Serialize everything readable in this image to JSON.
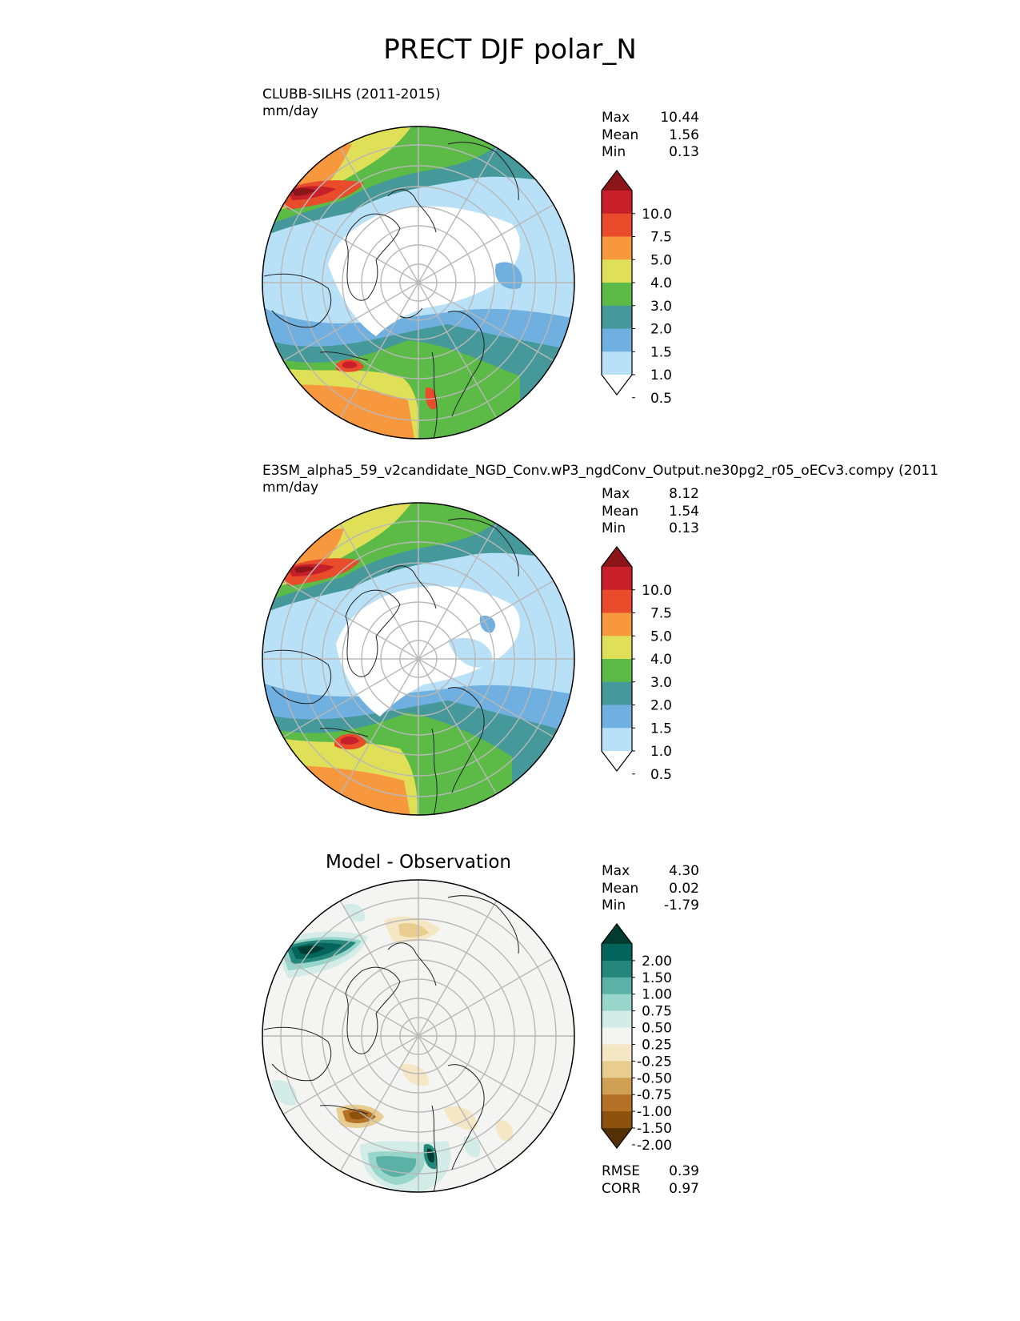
{
  "figure": {
    "title": "PRECT DJF polar_N"
  },
  "panels": [
    {
      "title_line1": "CLUBB-SILHS (2011-2015)",
      "title_line2": "mm/day",
      "stats": {
        "Max": "10.44",
        "Mean": "1.56",
        "Min": "0.13"
      },
      "stat_labels": {
        "max": "Max",
        "mean": "Mean",
        "min": "Min"
      }
    },
    {
      "title_line1": "E3SM_alpha5_59_v2candidate_NGD_Conv.wP3_ngdConv_Output.ne30pg2_r05_oECv3.compy (2011",
      "title_line2": "mm/day",
      "stats": {
        "Max": "8.12",
        "Mean": "1.54",
        "Min": "0.13"
      },
      "stat_labels": {
        "max": "Max",
        "mean": "Mean",
        "min": "Min"
      }
    },
    {
      "title": "Model - Observation",
      "stats": {
        "Max": "4.30",
        "Mean": "0.02",
        "Min": "-1.79"
      },
      "stat_labels": {
        "max": "Max",
        "mean": "Mean",
        "min": "Min"
      },
      "metrics": {
        "RMSE": "0.39",
        "CORR": "0.97"
      },
      "metric_labels": {
        "rmse": "RMSE",
        "corr": "CORR"
      }
    }
  ],
  "colorbars": {
    "precip": {
      "ticks": [
        "10.0",
        "7.5",
        "5.0",
        "4.0",
        "3.0",
        "2.0",
        "1.5",
        "1.0",
        "0.5"
      ],
      "colors": [
        "#ffffff",
        "#b8e0f7",
        "#6fb0e0",
        "#45999a",
        "#5cba47",
        "#dfe057",
        "#f7973e",
        "#e84c2a",
        "#c8202a",
        "#8c1519"
      ]
    },
    "diff": {
      "ticks": [
        "2.00",
        "1.50",
        "1.00",
        "0.75",
        "0.50",
        "0.25",
        "-0.25",
        "-0.50",
        "-0.75",
        "-1.00",
        "-1.50",
        "-2.00"
      ],
      "colors": [
        "#543005",
        "#8c510a",
        "#b57125",
        "#cfa054",
        "#e8cd8f",
        "#f5e6c4",
        "#f4f4f2",
        "#d3ece8",
        "#98d5cb",
        "#5bb1a5",
        "#23877c",
        "#02645a",
        "#003c30"
      ]
    }
  },
  "chart_data": [
    {
      "type": "heatmap",
      "projection": "north polar stereographic",
      "title": "CLUBB-SILHS (2011-2015)",
      "units": "mm/day",
      "levels": [
        0.5,
        1.0,
        1.5,
        2.0,
        3.0,
        4.0,
        5.0,
        7.5,
        10.0
      ],
      "stats": {
        "max": 10.44,
        "mean": 1.56,
        "min": 0.13
      }
    },
    {
      "type": "heatmap",
      "projection": "north polar stereographic",
      "title": "E3SM_alpha5_59_v2candidate_NGD_Conv.wP3_ngdConv_Output.ne30pg2_r05_oECv3.compy (2011",
      "units": "mm/day",
      "levels": [
        0.5,
        1.0,
        1.5,
        2.0,
        3.0,
        4.0,
        5.0,
        7.5,
        10.0
      ],
      "stats": {
        "max": 8.12,
        "mean": 1.54,
        "min": 0.13
      }
    },
    {
      "type": "heatmap",
      "projection": "north polar stereographic",
      "title": "Model - Observation",
      "levels": [
        -2.0,
        -1.5,
        -1.0,
        -0.75,
        -0.5,
        -0.25,
        0.25,
        0.5,
        0.75,
        1.0,
        1.5,
        2.0
      ],
      "stats": {
        "max": 4.3,
        "mean": 0.02,
        "min": -1.79
      },
      "rmse": 0.39,
      "corr": 0.97
    }
  ]
}
